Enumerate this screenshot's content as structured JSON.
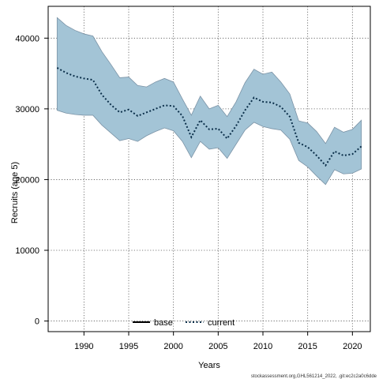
{
  "chart_data": {
    "type": "area",
    "xlabel": "Years",
    "ylabel": "Recruits (age 5)",
    "xlim": [
      1986,
      2022
    ],
    "ylim": [
      -1500,
      44500
    ],
    "x_ticks": [
      1990,
      1995,
      2000,
      2005,
      2010,
      2015,
      2020
    ],
    "y_ticks": [
      0,
      10000,
      20000,
      30000,
      40000
    ],
    "grid": true,
    "legend_position": "bottom",
    "legend": [
      {
        "label": "base",
        "style": "solid",
        "color": "#000000"
      },
      {
        "label": "current",
        "style": "dotted",
        "color": "#0b2f4a"
      }
    ],
    "band_color": "#a3c4d6",
    "band_edge_color": "#7b93a6",
    "x": [
      1987,
      1988,
      1989,
      1990,
      1991,
      1992,
      1993,
      1994,
      1995,
      1996,
      1997,
      1998,
      1999,
      2000,
      2001,
      2002,
      2003,
      2004,
      2005,
      2006,
      2007,
      2008,
      2009,
      2010,
      2011,
      2012,
      2013,
      2014,
      2015,
      2016,
      2017,
      2018,
      2019,
      2020,
      2021
    ],
    "series": [
      {
        "name": "current",
        "values": [
          35800,
          35100,
          34600,
          34300,
          34100,
          32000,
          30600,
          29500,
          29900,
          29000,
          29500,
          30000,
          30500,
          30400,
          29000,
          26000,
          28400,
          27100,
          27200,
          25800,
          27600,
          29800,
          31600,
          31000,
          30900,
          30300,
          28900,
          25200,
          24600,
          23400,
          22000,
          24000,
          23400,
          23600,
          24700
        ],
        "lower": [
          29800,
          29400,
          29200,
          29100,
          29100,
          27700,
          26600,
          25500,
          25800,
          25400,
          26200,
          26800,
          27300,
          26900,
          25400,
          23100,
          25400,
          24300,
          24500,
          23000,
          25000,
          27000,
          28100,
          27500,
          27200,
          27000,
          25700,
          22700,
          21800,
          20500,
          19300,
          21400,
          20800,
          20900,
          21500
        ],
        "upper": [
          42900,
          41800,
          41100,
          40600,
          40300,
          38100,
          36300,
          34400,
          34500,
          33300,
          33100,
          33800,
          34300,
          33800,
          31400,
          29100,
          31800,
          30000,
          30500,
          28900,
          31000,
          33700,
          35600,
          34900,
          35200,
          33800,
          32100,
          28300,
          28000,
          26800,
          25100,
          27400,
          26700,
          27100,
          28400
        ]
      }
    ]
  },
  "footer_text": "stockassessment.org,GHL561214_2022, .git:ec2c2a0c6dde"
}
